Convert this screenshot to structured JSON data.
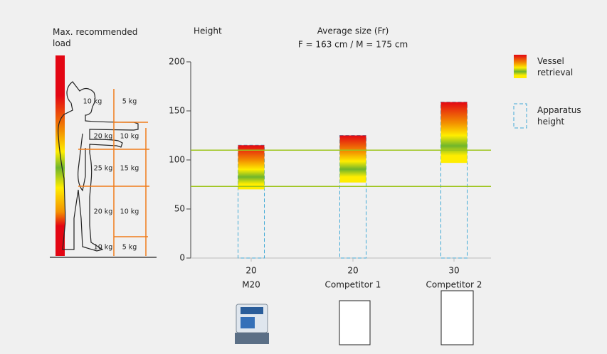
{
  "chart_data": {
    "type": "floating_bar",
    "y_label": "Height",
    "title": "Average size (Fr)",
    "subtitle": "F = 163 cm / M = 175 cm",
    "categories": [
      "M20",
      "Competitor 1",
      "Competitor 2"
    ],
    "sizes": [
      20,
      20,
      30
    ],
    "series": [
      {
        "name": "Vessel retrieval",
        "low": [
          70,
          77,
          97
        ],
        "high": [
          115,
          125,
          159
        ]
      },
      {
        "name": "Apparatus height",
        "values": [
          115,
          125,
          159
        ],
        "color": "#3fa9d6"
      }
    ],
    "reference_lines": [
      110,
      73
    ],
    "reference_color": "#9dc41a",
    "ylim": [
      0,
      200
    ],
    "yticks": [
      0,
      50,
      100,
      150,
      200
    ]
  },
  "load_chart": {
    "title": "Max. recommended load",
    "zones": [
      [
        "10 kg",
        "5 kg"
      ],
      [
        "20 kg",
        "10 kg"
      ],
      [
        "25 kg",
        "15 kg"
      ],
      [
        "20 kg",
        "10 kg"
      ],
      [
        "10 kg",
        "5 kg"
      ]
    ]
  }
}
